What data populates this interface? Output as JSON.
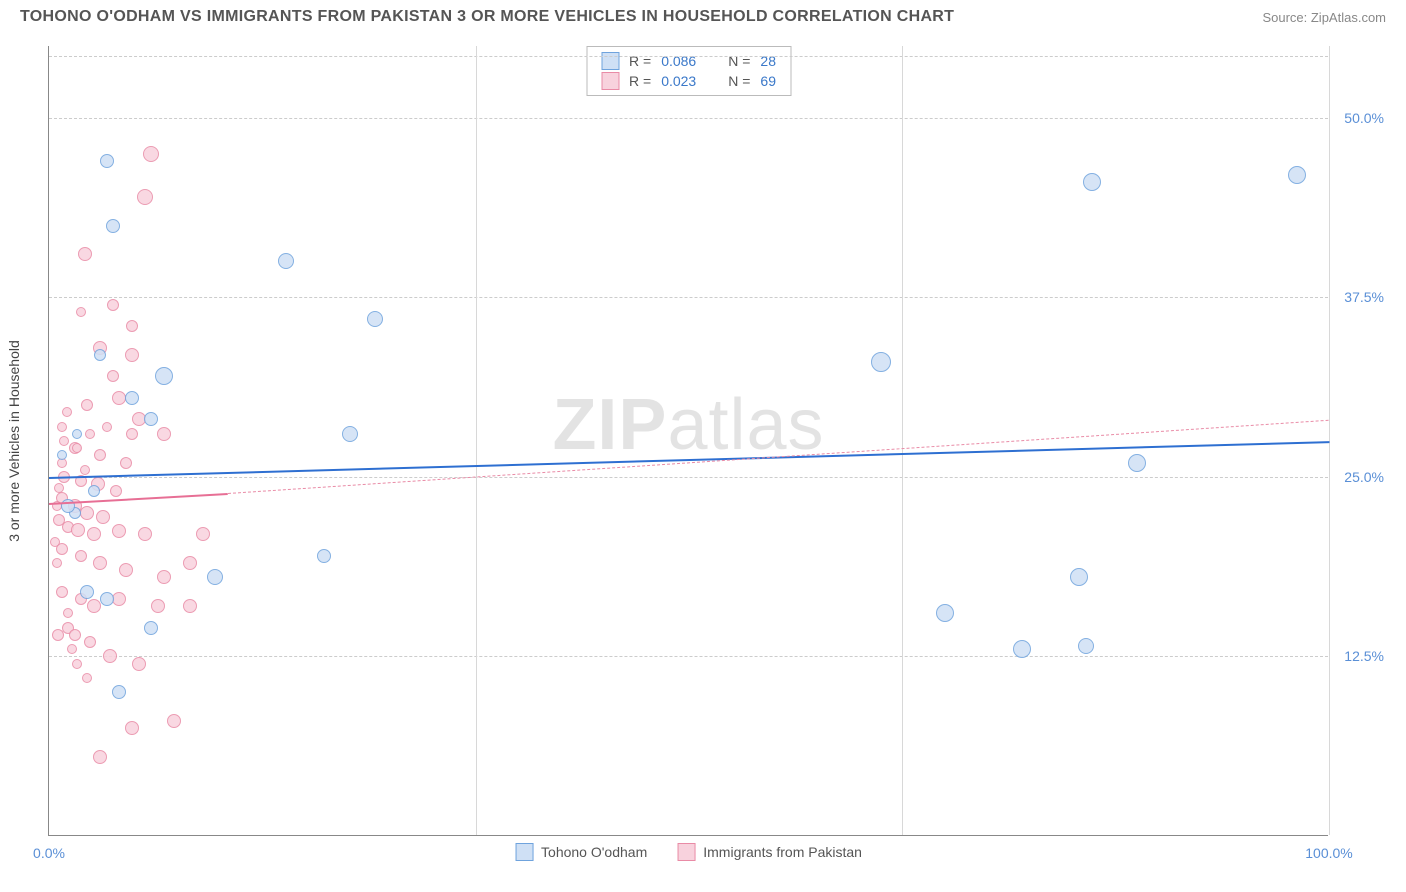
{
  "header": {
    "title": "TOHONO O'ODHAM VS IMMIGRANTS FROM PAKISTAN 3 OR MORE VEHICLES IN HOUSEHOLD CORRELATION CHART",
    "source": "Source: ZipAtlas.com"
  },
  "axes": {
    "ylabel": "3 or more Vehicles in Household",
    "xmin": 0,
    "xmax": 100,
    "ymin": 0,
    "ymax": 55,
    "yticks": [
      {
        "v": 12.5,
        "label": "12.5%"
      },
      {
        "v": 25.0,
        "label": "25.0%"
      },
      {
        "v": 37.5,
        "label": "37.5%"
      },
      {
        "v": 50.0,
        "label": "50.0%"
      }
    ],
    "xticks": [
      {
        "v": 0,
        "label": "0.0%"
      },
      {
        "v": 100,
        "label": "100.0%"
      }
    ],
    "vgrid_at": [
      33.333,
      66.667,
      100
    ]
  },
  "watermark": {
    "bold": "ZIP",
    "light": "atlas"
  },
  "series": {
    "a": {
      "label": "Tohono O'odham",
      "fill": "#cfe0f5",
      "stroke": "#6fa3dd",
      "r_label": "R =",
      "n_label": "N =",
      "r": "0.086",
      "n": "28",
      "trend": {
        "x1": 0,
        "y1": 25.0,
        "x2": 100,
        "y2": 27.5,
        "color": "#2e6fd1",
        "width": 2,
        "dash": false
      },
      "points": [
        {
          "x": 4.5,
          "y": 47.0,
          "sz": 14
        },
        {
          "x": 5.0,
          "y": 42.5,
          "sz": 14
        },
        {
          "x": 18.5,
          "y": 40.0,
          "sz": 16
        },
        {
          "x": 25.5,
          "y": 36.0,
          "sz": 16
        },
        {
          "x": 9.0,
          "y": 32.0,
          "sz": 18
        },
        {
          "x": 6.5,
          "y": 30.5,
          "sz": 14
        },
        {
          "x": 4.0,
          "y": 33.5,
          "sz": 12
        },
        {
          "x": 8.0,
          "y": 29.0,
          "sz": 14
        },
        {
          "x": 23.5,
          "y": 28.0,
          "sz": 16
        },
        {
          "x": 3.5,
          "y": 24.0,
          "sz": 12
        },
        {
          "x": 2.0,
          "y": 22.5,
          "sz": 12
        },
        {
          "x": 21.5,
          "y": 19.5,
          "sz": 14
        },
        {
          "x": 13.0,
          "y": 18.0,
          "sz": 16
        },
        {
          "x": 3.0,
          "y": 17.0,
          "sz": 14
        },
        {
          "x": 4.5,
          "y": 16.5,
          "sz": 14
        },
        {
          "x": 8.0,
          "y": 14.5,
          "sz": 14
        },
        {
          "x": 5.5,
          "y": 10.0,
          "sz": 14
        },
        {
          "x": 1.5,
          "y": 23.0,
          "sz": 14
        },
        {
          "x": 65.0,
          "y": 33.0,
          "sz": 20
        },
        {
          "x": 70.0,
          "y": 15.5,
          "sz": 18
        },
        {
          "x": 76.0,
          "y": 13.0,
          "sz": 18
        },
        {
          "x": 80.5,
          "y": 18.0,
          "sz": 18
        },
        {
          "x": 81.0,
          "y": 13.2,
          "sz": 16
        },
        {
          "x": 81.5,
          "y": 45.5,
          "sz": 18
        },
        {
          "x": 85.0,
          "y": 26.0,
          "sz": 18
        },
        {
          "x": 97.5,
          "y": 46.0,
          "sz": 18
        },
        {
          "x": 1.0,
          "y": 26.5,
          "sz": 10
        },
        {
          "x": 2.2,
          "y": 28.0,
          "sz": 10
        }
      ]
    },
    "b": {
      "label": "Immigrants from Pakistan",
      "fill": "#f8d2dd",
      "stroke": "#e98ba6",
      "r_label": "R =",
      "n_label": "N =",
      "r": "0.023",
      "n": "69",
      "trend_solid": {
        "x1": 0,
        "y1": 23.2,
        "x2": 14,
        "y2": 23.9,
        "color": "#e76f95",
        "width": 2
      },
      "trend_dash": {
        "x1": 14,
        "y1": 23.9,
        "x2": 100,
        "y2": 29.0,
        "color": "#e98ba6",
        "width": 1
      },
      "points": [
        {
          "x": 8.0,
          "y": 47.5,
          "sz": 16
        },
        {
          "x": 7.5,
          "y": 44.5,
          "sz": 16
        },
        {
          "x": 2.8,
          "y": 40.5,
          "sz": 14
        },
        {
          "x": 4.0,
          "y": 34.0,
          "sz": 14
        },
        {
          "x": 6.5,
          "y": 33.5,
          "sz": 14
        },
        {
          "x": 5.0,
          "y": 32.0,
          "sz": 12
        },
        {
          "x": 3.0,
          "y": 30.0,
          "sz": 12
        },
        {
          "x": 5.5,
          "y": 30.5,
          "sz": 14
        },
        {
          "x": 7.0,
          "y": 29.0,
          "sz": 14
        },
        {
          "x": 9.0,
          "y": 28.0,
          "sz": 14
        },
        {
          "x": 2.0,
          "y": 27.0,
          "sz": 12
        },
        {
          "x": 4.0,
          "y": 26.5,
          "sz": 12
        },
        {
          "x": 6.0,
          "y": 26.0,
          "sz": 12
        },
        {
          "x": 1.2,
          "y": 25.0,
          "sz": 12
        },
        {
          "x": 2.5,
          "y": 24.7,
          "sz": 12
        },
        {
          "x": 3.8,
          "y": 24.5,
          "sz": 14
        },
        {
          "x": 5.2,
          "y": 24.0,
          "sz": 12
        },
        {
          "x": 1.0,
          "y": 23.5,
          "sz": 12
        },
        {
          "x": 2.0,
          "y": 23.0,
          "sz": 14
        },
        {
          "x": 3.0,
          "y": 22.5,
          "sz": 14
        },
        {
          "x": 4.2,
          "y": 22.2,
          "sz": 14
        },
        {
          "x": 0.8,
          "y": 22.0,
          "sz": 12
        },
        {
          "x": 1.5,
          "y": 21.5,
          "sz": 12
        },
        {
          "x": 2.3,
          "y": 21.3,
          "sz": 14
        },
        {
          "x": 3.5,
          "y": 21.0,
          "sz": 14
        },
        {
          "x": 5.5,
          "y": 21.2,
          "sz": 14
        },
        {
          "x": 7.5,
          "y": 21.0,
          "sz": 14
        },
        {
          "x": 12.0,
          "y": 21.0,
          "sz": 14
        },
        {
          "x": 1.0,
          "y": 20.0,
          "sz": 12
        },
        {
          "x": 2.5,
          "y": 19.5,
          "sz": 12
        },
        {
          "x": 4.0,
          "y": 19.0,
          "sz": 14
        },
        {
          "x": 6.0,
          "y": 18.5,
          "sz": 14
        },
        {
          "x": 9.0,
          "y": 18.0,
          "sz": 14
        },
        {
          "x": 11.0,
          "y": 19.0,
          "sz": 14
        },
        {
          "x": 1.0,
          "y": 17.0,
          "sz": 12
        },
        {
          "x": 2.5,
          "y": 16.5,
          "sz": 12
        },
        {
          "x": 3.5,
          "y": 16.0,
          "sz": 14
        },
        {
          "x": 5.5,
          "y": 16.5,
          "sz": 14
        },
        {
          "x": 8.5,
          "y": 16.0,
          "sz": 14
        },
        {
          "x": 11.0,
          "y": 16.0,
          "sz": 14
        },
        {
          "x": 1.5,
          "y": 14.5,
          "sz": 12
        },
        {
          "x": 0.7,
          "y": 14.0,
          "sz": 12
        },
        {
          "x": 2.0,
          "y": 14.0,
          "sz": 12
        },
        {
          "x": 3.2,
          "y": 13.5,
          "sz": 12
        },
        {
          "x": 4.8,
          "y": 12.5,
          "sz": 14
        },
        {
          "x": 7.0,
          "y": 12.0,
          "sz": 14
        },
        {
          "x": 9.8,
          "y": 8.0,
          "sz": 14
        },
        {
          "x": 6.5,
          "y": 7.5,
          "sz": 14
        },
        {
          "x": 4.0,
          "y": 5.5,
          "sz": 14
        },
        {
          "x": 1.5,
          "y": 15.5,
          "sz": 10
        },
        {
          "x": 0.5,
          "y": 20.5,
          "sz": 10
        },
        {
          "x": 1.0,
          "y": 26.0,
          "sz": 10
        },
        {
          "x": 1.2,
          "y": 27.5,
          "sz": 10
        },
        {
          "x": 0.6,
          "y": 23.0,
          "sz": 10
        },
        {
          "x": 0.8,
          "y": 24.2,
          "sz": 10
        },
        {
          "x": 2.2,
          "y": 27.0,
          "sz": 10
        },
        {
          "x": 2.8,
          "y": 25.5,
          "sz": 10
        },
        {
          "x": 3.2,
          "y": 28.0,
          "sz": 10
        },
        {
          "x": 4.5,
          "y": 28.5,
          "sz": 10
        },
        {
          "x": 1.8,
          "y": 13.0,
          "sz": 10
        },
        {
          "x": 2.2,
          "y": 12.0,
          "sz": 10
        },
        {
          "x": 3.0,
          "y": 11.0,
          "sz": 10
        },
        {
          "x": 6.5,
          "y": 28.0,
          "sz": 12
        },
        {
          "x": 5.0,
          "y": 37.0,
          "sz": 12
        },
        {
          "x": 6.5,
          "y": 35.5,
          "sz": 12
        },
        {
          "x": 2.5,
          "y": 36.5,
          "sz": 10
        },
        {
          "x": 1.0,
          "y": 28.5,
          "sz": 10
        },
        {
          "x": 1.4,
          "y": 29.5,
          "sz": 10
        },
        {
          "x": 0.6,
          "y": 19.0,
          "sz": 10
        }
      ]
    }
  }
}
